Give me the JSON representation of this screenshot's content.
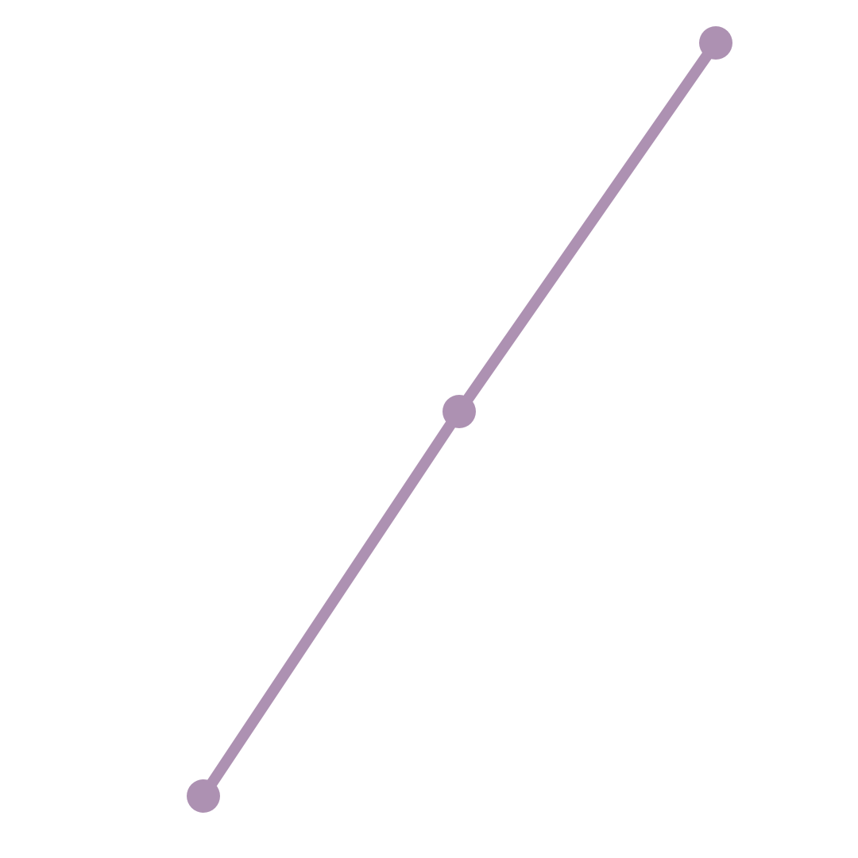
{
  "chart_data": {
    "type": "line",
    "series": [
      {
        "color": "#ad91b2",
        "points": [
          {
            "x": 1,
            "y": 1
          },
          {
            "x": 2,
            "y": 2
          },
          {
            "x": 3,
            "y": 3
          }
        ]
      }
    ],
    "grid": false,
    "axes_visible": false
  }
}
